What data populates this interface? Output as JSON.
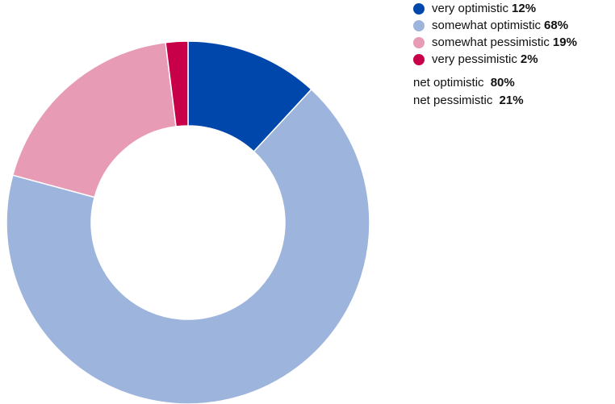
{
  "chart_data": {
    "type": "pie",
    "donut": true,
    "categories": [
      "very optimistic",
      "somewhat optimistic",
      "somewhat pessimistic",
      "very pessimistic"
    ],
    "values": [
      12,
      68,
      19,
      2
    ],
    "value_labels": [
      "12%",
      "68%",
      "19%",
      "2%"
    ],
    "colors": [
      "#0047ab",
      "#9db5dd",
      "#e79bb5",
      "#c8004a"
    ],
    "legend_placement": "top-right",
    "notes": [
      {
        "label": "net optimistic",
        "value": "80%"
      },
      {
        "label": "net pessimistic",
        "value": "21%"
      }
    ]
  }
}
